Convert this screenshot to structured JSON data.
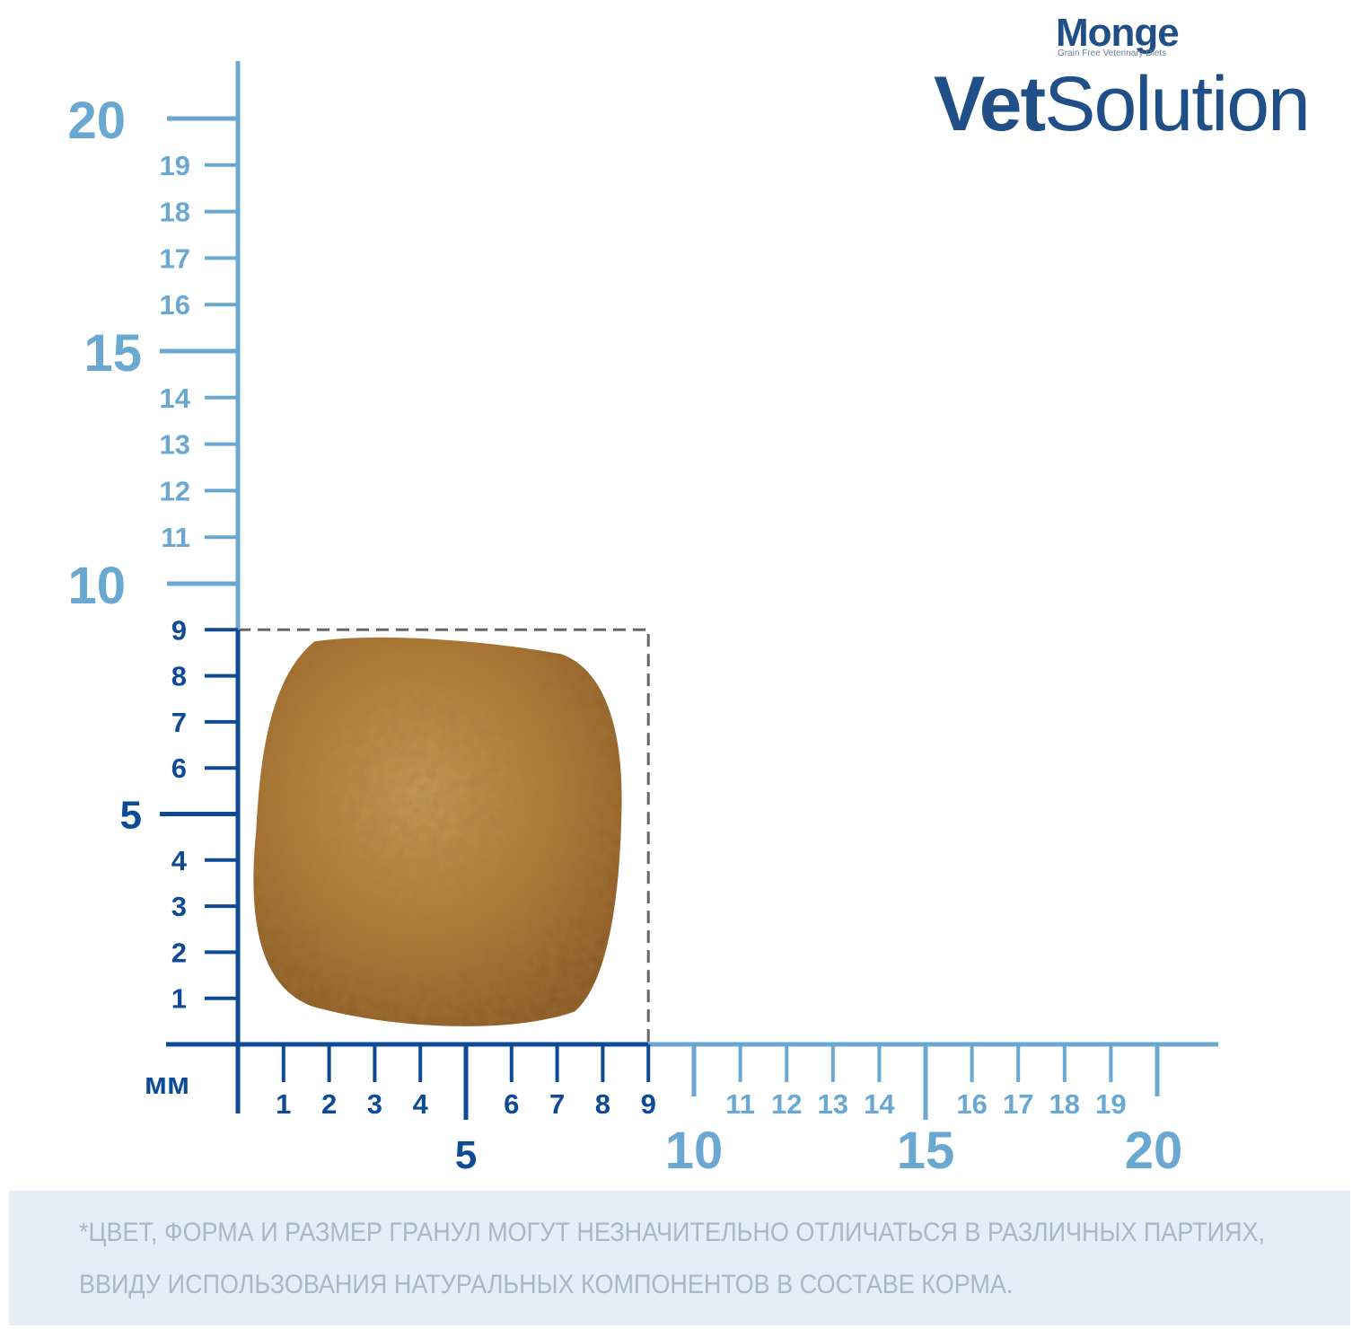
{
  "logo": {
    "brand": "Monge",
    "tagline": "Grain Free Veterinary Diets",
    "product_bold": "Vet",
    "product_light": "Solution"
  },
  "unit_label": "мм",
  "scale": {
    "light_color": "#6aa8d1",
    "dark_color": "#0e4a96",
    "highlight_max": 9,
    "axis_max": 20,
    "major_ticks": [
      5,
      10,
      15,
      20
    ],
    "x_labels": [
      "1",
      "2",
      "3",
      "4",
      "6",
      "7",
      "8",
      "9",
      "11",
      "12",
      "13",
      "14",
      "16",
      "17",
      "18",
      "19"
    ],
    "x_major_labels": [
      "5",
      "10",
      "15",
      "20"
    ],
    "y_labels": [
      "1",
      "2",
      "3",
      "4",
      "6",
      "7",
      "8",
      "9",
      "11",
      "12",
      "13",
      "14",
      "16",
      "17",
      "18",
      "19"
    ],
    "y_major_labels": [
      "5",
      "10",
      "15",
      "20"
    ]
  },
  "kibble": {
    "width_mm": 9,
    "height_mm": 9,
    "color": "#b07a35"
  },
  "footer": {
    "line1": "*ЦВЕТ, ФОРМА И РАЗМЕР ГРАНУЛ МОГУТ НЕЗНАЧИТЕЛЬНО ОТЛИЧАТЬСЯ В РАЗЛИЧНЫХ ПАРТИЯХ,",
    "line2": "ВВИДУ ИСПОЛЬЗОВАНИЯ НАТУРАЛЬНЫХ КОМПОНЕНТОВ В СОСТАВЕ КОРМА."
  }
}
